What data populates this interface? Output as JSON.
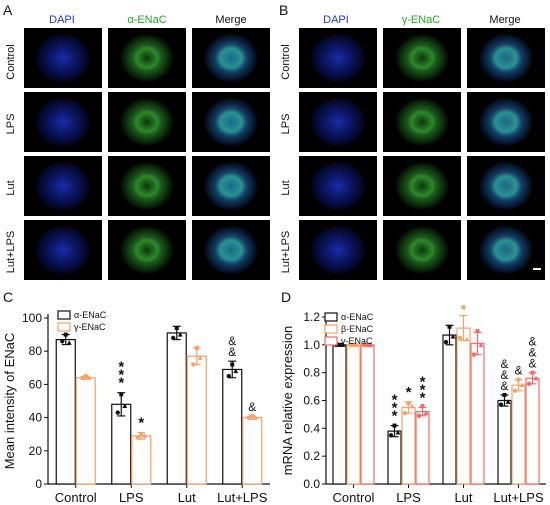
{
  "panel_letters": {
    "a": "A",
    "b": "B",
    "c": "C",
    "d": "D"
  },
  "panel_a": {
    "columns": [
      "DAPI",
      "α-ENaC",
      "Merge"
    ],
    "column_colors": [
      "#2233dd",
      "#22aa22",
      "#111111"
    ],
    "rows": [
      "Control",
      "LPS",
      "Lut",
      "Lut+LPS"
    ]
  },
  "panel_b": {
    "columns": [
      "DAPI",
      "γ-ENaC",
      "Merge"
    ],
    "column_colors": [
      "#2233dd",
      "#22aa22",
      "#111111"
    ],
    "rows": [
      "Control",
      "LPS",
      "Lut",
      "Lut+LPS"
    ]
  },
  "chart_data": [
    {
      "type": "bar",
      "ylabel": "Mean intensity of ENaC",
      "categories": [
        "Control",
        "LPS",
        "Lut",
        "Lut+LPS"
      ],
      "ylim": [
        0,
        100
      ],
      "yticks": [
        0,
        20,
        40,
        60,
        80,
        100
      ],
      "series": [
        {
          "name": "α-ENaC",
          "values": [
            87,
            48,
            91,
            69
          ],
          "errors": [
            3,
            7,
            4,
            5
          ],
          "color": "#111111",
          "points": [
            [
              86,
              90,
              85
            ],
            [
              43,
              54,
              47
            ],
            [
              88,
              94,
              90
            ],
            [
              65,
              72,
              68
            ]
          ]
        },
        {
          "name": "γ-ENaC",
          "values": [
            64,
            29,
            77,
            40
          ],
          "errors": [
            1,
            2,
            5,
            1
          ],
          "color": "#f4a26a",
          "points": [
            [
              64,
              65,
              64
            ],
            [
              28,
              30,
              29
            ],
            [
              72,
              82,
              76
            ],
            [
              40,
              41,
              40
            ]
          ]
        }
      ],
      "annotations": [
        {
          "category": "LPS",
          "series": 0,
          "text": "***"
        },
        {
          "category": "LPS",
          "series": 1,
          "text": "*"
        },
        {
          "category": "Lut+LPS",
          "series": 0,
          "text": "&&"
        },
        {
          "category": "Lut+LPS",
          "series": 1,
          "text": "&"
        }
      ]
    },
    {
      "type": "bar",
      "ylabel": "mRNA relative expression",
      "categories": [
        "Control",
        "LPS",
        "Lut",
        "Lut+LPS"
      ],
      "ylim": [
        0,
        1.2
      ],
      "yticks": [
        "0.0",
        "0.2",
        "0.4",
        "0.6",
        "0.8",
        "1.0",
        "1.2"
      ],
      "series": [
        {
          "name": "α-ENaC",
          "values": [
            1.0,
            0.38,
            1.07,
            0.6
          ],
          "errors": [
            0.01,
            0.04,
            0.07,
            0.04
          ],
          "color": "#111111",
          "points": [
            [
              1.0,
              1.0,
              1.0
            ],
            [
              0.35,
              0.42,
              0.37
            ],
            [
              1.02,
              1.13,
              1.06
            ],
            [
              0.57,
              0.64,
              0.59
            ]
          ]
        },
        {
          "name": "β-ENaC",
          "values": [
            1.0,
            0.55,
            1.12,
            0.71
          ],
          "errors": [
            0.01,
            0.04,
            0.09,
            0.04
          ],
          "color": "#f4a26a",
          "points": [
            [
              1.0,
              1.0,
              1.0
            ],
            [
              0.51,
              0.58,
              0.56
            ],
            [
              1.05,
              1.27,
              1.04
            ],
            [
              0.67,
              0.75,
              0.71
            ]
          ]
        },
        {
          "name": "γ-ENaC",
          "values": [
            1.0,
            0.52,
            1.01,
            0.76
          ],
          "errors": [
            0.01,
            0.03,
            0.08,
            0.04
          ],
          "color": "#f06a6a",
          "points": [
            [
              1.0,
              1.0,
              1.0
            ],
            [
              0.49,
              0.56,
              0.51
            ],
            [
              0.93,
              1.1,
              1.0
            ],
            [
              0.72,
              0.8,
              0.76
            ]
          ]
        }
      ],
      "annotations": [
        {
          "category": "LPS",
          "series": 0,
          "text": "***"
        },
        {
          "category": "LPS",
          "series": 1,
          "text": "*"
        },
        {
          "category": "LPS",
          "series": 2,
          "text": "***"
        },
        {
          "category": "Lut+LPS",
          "series": 0,
          "text": "&&&"
        },
        {
          "category": "Lut+LPS",
          "series": 1,
          "text": "&"
        },
        {
          "category": "Lut+LPS",
          "series": 2,
          "text": "&&&"
        }
      ]
    }
  ]
}
